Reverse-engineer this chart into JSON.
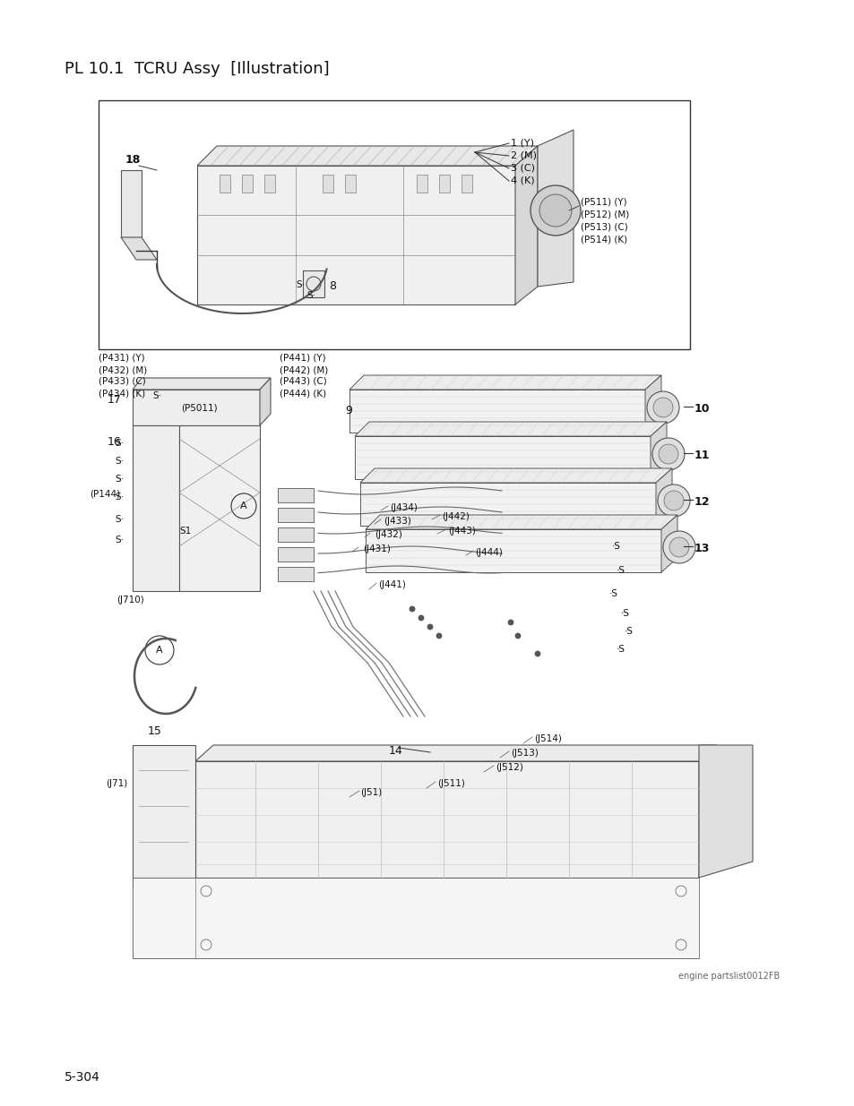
{
  "title": "PL 10.1  TCRU Assy  [Illustration]",
  "page_number": "5-304",
  "watermark": "engine partslist0012FB",
  "bg_color": "#ffffff",
  "title_fontsize": 12,
  "page_fontsize": 9,
  "fig_width": 9.54,
  "fig_height": 12.35,
  "dpi": 100
}
